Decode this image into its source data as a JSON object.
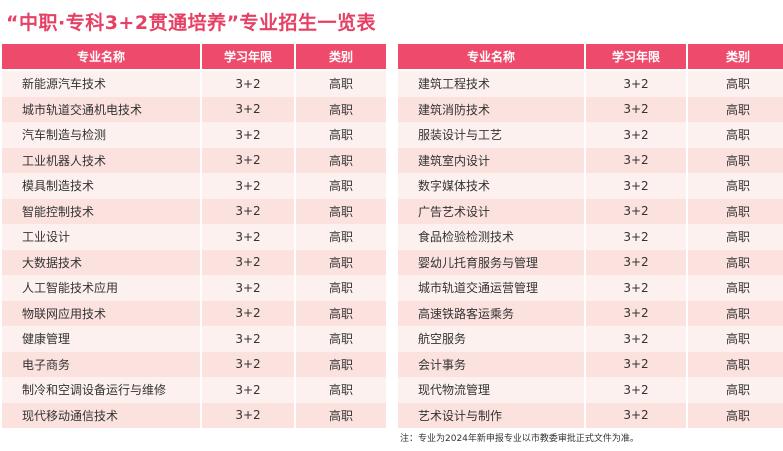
{
  "title": "“中职·专科3+2贯通培养”专业招生一览表",
  "headers": {
    "major": "专业名称",
    "duration": "学习年限",
    "category": "类别"
  },
  "left_rows": [
    {
      "name": "新能源汽车技术",
      "duration": "3+2",
      "category": "高职"
    },
    {
      "name": "城市轨道交通机电技术",
      "duration": "3+2",
      "category": "高职"
    },
    {
      "name": "汽车制造与检测",
      "duration": "3+2",
      "category": "高职"
    },
    {
      "name": "工业机器人技术",
      "duration": "3+2",
      "category": "高职"
    },
    {
      "name": "模具制造技术",
      "duration": "3+2",
      "category": "高职"
    },
    {
      "name": "智能控制技术",
      "duration": "3+2",
      "category": "高职"
    },
    {
      "name": "工业设计",
      "duration": "3+2",
      "category": "高职"
    },
    {
      "name": "大数据技术",
      "duration": "3+2",
      "category": "高职"
    },
    {
      "name": "人工智能技术应用",
      "duration": "3+2",
      "category": "高职"
    },
    {
      "name": "物联网应用技术",
      "duration": "3+2",
      "category": "高职"
    },
    {
      "name": "健康管理",
      "duration": "3+2",
      "category": "高职"
    },
    {
      "name": "电子商务",
      "duration": "3+2",
      "category": "高职"
    },
    {
      "name": "制冷和空调设备运行与维修",
      "duration": "3+2",
      "category": "高职"
    },
    {
      "name": "现代移动通信技术",
      "duration": "3+2",
      "category": "高职"
    }
  ],
  "right_rows": [
    {
      "name": "建筑工程技术",
      "duration": "3+2",
      "category": "高职"
    },
    {
      "name": "建筑消防技术",
      "duration": "3+2",
      "category": "高职"
    },
    {
      "name": "服装设计与工艺",
      "duration": "3+2",
      "category": "高职"
    },
    {
      "name": "建筑室内设计",
      "duration": "3+2",
      "category": "高职"
    },
    {
      "name": "数字媒体技术",
      "duration": "3+2",
      "category": "高职"
    },
    {
      "name": "广告艺术设计",
      "duration": "3+2",
      "category": "高职"
    },
    {
      "name": "食品检验检测技术",
      "duration": "3+2",
      "category": "高职"
    },
    {
      "name": "婴幼儿托育服务与管理",
      "duration": "3+2",
      "category": "高职"
    },
    {
      "name": "城市轨道交通运营管理",
      "duration": "3+2",
      "category": "高职"
    },
    {
      "name": "高速铁路客运乘务",
      "duration": "3+2",
      "category": "高职"
    },
    {
      "name": "航空服务",
      "duration": "3+2",
      "category": "高职"
    },
    {
      "name": "会计事务",
      "duration": "3+2",
      "category": "高职"
    },
    {
      "name": "现代物流管理",
      "duration": "3+2",
      "category": "高职"
    },
    {
      "name": "艺术设计与制作",
      "duration": "3+2",
      "category": "高职"
    }
  ],
  "note": "注：专业为2024年新申报专业以市教委审批正式文件为准。"
}
